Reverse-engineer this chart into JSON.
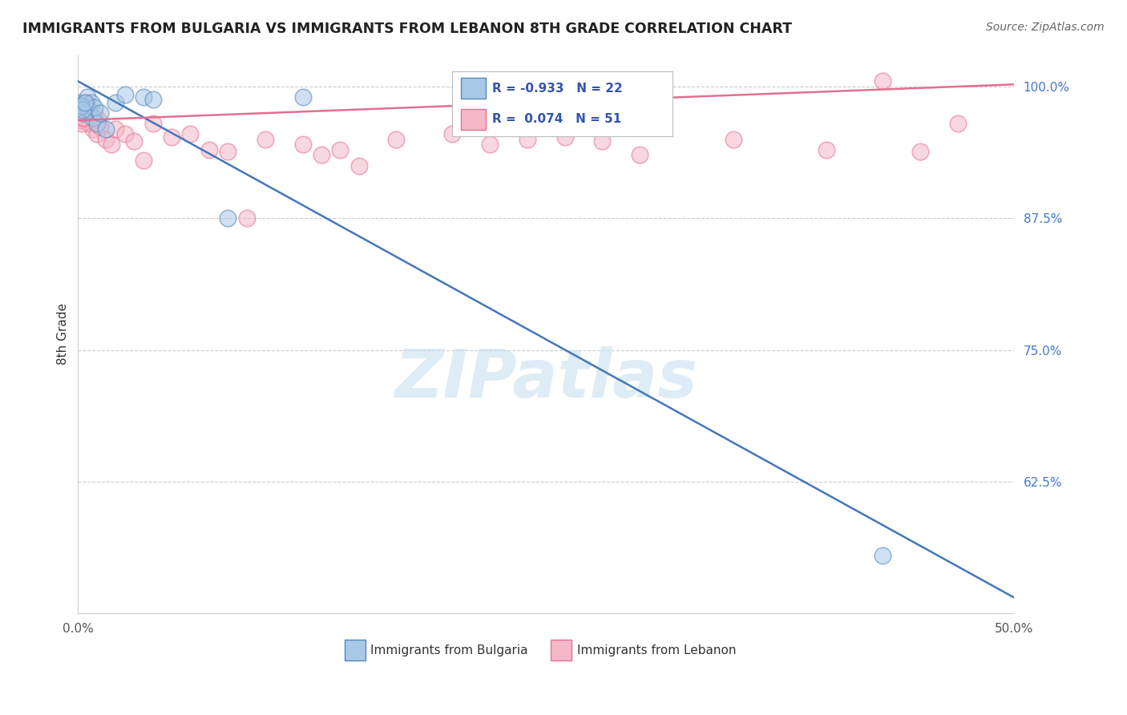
{
  "title": "IMMIGRANTS FROM BULGARIA VS IMMIGRANTS FROM LEBANON 8TH GRADE CORRELATION CHART",
  "source": "Source: ZipAtlas.com",
  "ylabel": "8th Grade",
  "xmin": 0.0,
  "xmax": 50.0,
  "ymin": 50.0,
  "ymax": 103.0,
  "watermark": "ZIPatlas",
  "legend_R1": "-0.933",
  "legend_N1": "22",
  "legend_R2": "0.074",
  "legend_N2": "51",
  "legend_label1": "Immigrants from Bulgaria",
  "legend_label2": "Immigrants from Lebanon",
  "blue_color": "#a8c8e8",
  "pink_color": "#f4b8c8",
  "blue_edge_color": "#5588bb",
  "pink_edge_color": "#e87090",
  "blue_line_color": "#4477bb",
  "pink_line_color": "#e07090",
  "blue_trend_x0": 0.0,
  "blue_trend_y0": 100.5,
  "blue_trend_x1": 50.0,
  "blue_trend_y1": 51.5,
  "pink_trend_x0": 0.0,
  "pink_trend_y0": 96.8,
  "pink_trend_x1": 50.0,
  "pink_trend_y1": 100.2,
  "blue_scatter_x": [
    0.1,
    0.2,
    0.3,
    0.4,
    0.5,
    0.6,
    0.7,
    0.8,
    0.9,
    1.0,
    1.2,
    1.5,
    2.0,
    2.5,
    3.5,
    4.0,
    8.0,
    12.0,
    43.0,
    0.15,
    0.25,
    0.35
  ],
  "blue_scatter_y": [
    98.5,
    98.0,
    97.5,
    98.0,
    99.0,
    97.8,
    98.5,
    97.0,
    98.0,
    96.5,
    97.5,
    96.0,
    98.5,
    99.2,
    99.0,
    98.8,
    87.5,
    99.0,
    55.5,
    98.2,
    97.8,
    98.5
  ],
  "pink_scatter_x": [
    0.05,
    0.1,
    0.15,
    0.2,
    0.25,
    0.3,
    0.35,
    0.4,
    0.45,
    0.5,
    0.6,
    0.7,
    0.8,
    0.9,
    1.0,
    1.1,
    1.2,
    1.5,
    1.8,
    2.0,
    2.5,
    3.0,
    3.5,
    4.0,
    5.0,
    6.0,
    7.0,
    8.0,
    9.0,
    10.0,
    12.0,
    13.0,
    14.0,
    15.0,
    17.0,
    20.0,
    22.0,
    24.0,
    26.0,
    28.0,
    30.0,
    35.0,
    40.0,
    43.0,
    45.0,
    47.0,
    0.08,
    0.12,
    0.18,
    0.22,
    0.28
  ],
  "pink_scatter_y": [
    97.5,
    97.0,
    98.0,
    97.2,
    96.8,
    97.5,
    98.2,
    97.0,
    98.5,
    97.8,
    96.5,
    97.2,
    96.0,
    97.5,
    95.5,
    96.8,
    96.2,
    95.0,
    94.5,
    96.0,
    95.5,
    94.8,
    93.0,
    96.5,
    95.2,
    95.5,
    94.0,
    93.8,
    87.5,
    95.0,
    94.5,
    93.5,
    94.0,
    92.5,
    95.0,
    95.5,
    94.5,
    95.0,
    95.2,
    94.8,
    93.5,
    95.0,
    94.0,
    100.5,
    93.8,
    96.5,
    97.2,
    96.8,
    97.0,
    96.5,
    97.0
  ]
}
